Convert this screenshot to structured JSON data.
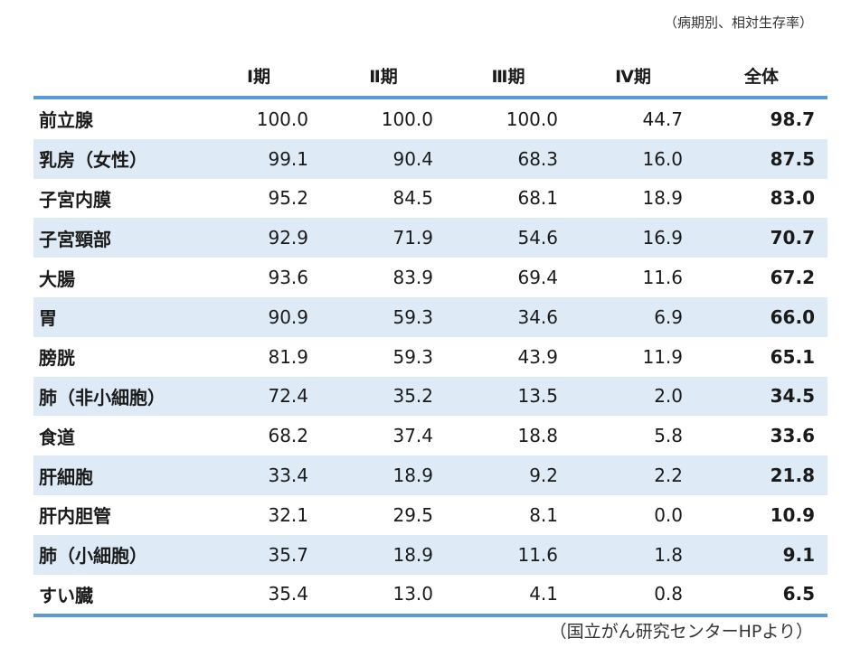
{
  "note_top": "（病期別、相対生存率）",
  "note_bottom": "（国立がん研究センターHPより）",
  "headers": [
    "",
    "Ⅰ期",
    "Ⅱ期",
    "Ⅲ期",
    "Ⅳ期",
    "全体"
  ],
  "rows": [
    {
      "name": "前立腺",
      "s1": "100.0",
      "s2": "100.0",
      "s3": "100.0",
      "s4": "44.7",
      "all": "98.7"
    },
    {
      "name": "乳房（女性）",
      "s1": "99.1",
      "s2": "90.4",
      "s3": "68.3",
      "s4": "16.0",
      "all": "87.5"
    },
    {
      "name": "子宮内膜",
      "s1": "95.2",
      "s2": "84.5",
      "s3": "68.1",
      "s4": "18.9",
      "all": "83.0"
    },
    {
      "name": "子宮頸部",
      "s1": "92.9",
      "s2": "71.9",
      "s3": "54.6",
      "s4": "16.9",
      "all": "70.7"
    },
    {
      "name": "大腸",
      "s1": "93.6",
      "s2": "83.9",
      "s3": "69.4",
      "s4": "11.6",
      "all": "67.2"
    },
    {
      "name": "胃",
      "s1": "90.9",
      "s2": "59.3",
      "s3": "34.6",
      "s4": "6.9",
      "all": "66.0"
    },
    {
      "name": "膀胱",
      "s1": "81.9",
      "s2": "59.3",
      "s3": "43.9",
      "s4": "11.9",
      "all": "65.1"
    },
    {
      "name": "肺（非小細胞）",
      "s1": "72.4",
      "s2": "35.2",
      "s3": "13.5",
      "s4": "2.0",
      "all": "34.5"
    },
    {
      "name": "食道",
      "s1": "68.2",
      "s2": "37.4",
      "s3": "18.8",
      "s4": "5.8",
      "all": "33.6"
    },
    {
      "name": "肝細胞",
      "s1": "33.4",
      "s2": "18.9",
      "s3": "9.2",
      "s4": "2.2",
      "all": "21.8"
    },
    {
      "name": "肝内胆管",
      "s1": "32.1",
      "s2": "29.5",
      "s3": "8.1",
      "s4": "0.0",
      "all": "10.9"
    },
    {
      "name": "肺（小細胞）",
      "s1": "35.7",
      "s2": "18.9",
      "s3": "11.6",
      "s4": "1.8",
      "all": "9.1"
    },
    {
      "name": "すい臓",
      "s1": "35.4",
      "s2": "13.0",
      "s3": "4.1",
      "s4": "0.8",
      "all": "6.5"
    }
  ],
  "colors": {
    "accent_line": "#5b9bd5",
    "stripe": "#deebf7"
  }
}
